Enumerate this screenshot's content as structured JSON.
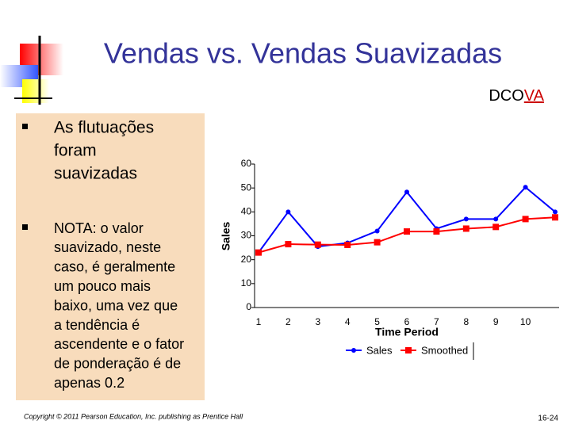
{
  "title": "Vendas vs. Vendas Suavizadas",
  "dcova": [
    "DCO",
    "VA"
  ],
  "bullets": [
    [
      "As flutuações",
      "foram",
      "suavizadas"
    ],
    [
      "NOTA:  o valor",
      "suavizado, neste",
      "caso, é geralmente",
      "um pouco mais",
      "baixo, uma vez que",
      "a tendência é",
      "ascendente e o fator",
      "de ponderação é de",
      "apenas 0.2"
    ]
  ],
  "chart_data": {
    "type": "line",
    "categories": [
      "1",
      "2",
      "3",
      "4",
      "5",
      "6",
      "7",
      "8",
      "9",
      "10",
      null
    ],
    "series": [
      {
        "name": "Sales",
        "color": "#0000ff",
        "marker": "circle",
        "values": [
          23,
          40,
          25.5,
          27,
          32,
          48.3,
          33,
          37,
          37,
          50.3,
          40
        ]
      },
      {
        "name": "Smoothed",
        "color": "#ff0000",
        "marker": "square",
        "values": [
          23,
          26.5,
          26.3,
          26.2,
          27.3,
          31.8,
          31.8,
          33,
          33.7,
          37,
          37.7
        ]
      }
    ],
    "ylabel": "Sales",
    "xlabel": "Time Period",
    "ylim": [
      0,
      60
    ],
    "yticks": [
      0,
      10,
      20,
      30,
      40,
      50,
      60
    ],
    "legend": "bottom"
  },
  "footer": {
    "copyright": "Copyright © 2011 Pearson Education, Inc. publishing as Prentice Hall",
    "page": "16-24"
  }
}
